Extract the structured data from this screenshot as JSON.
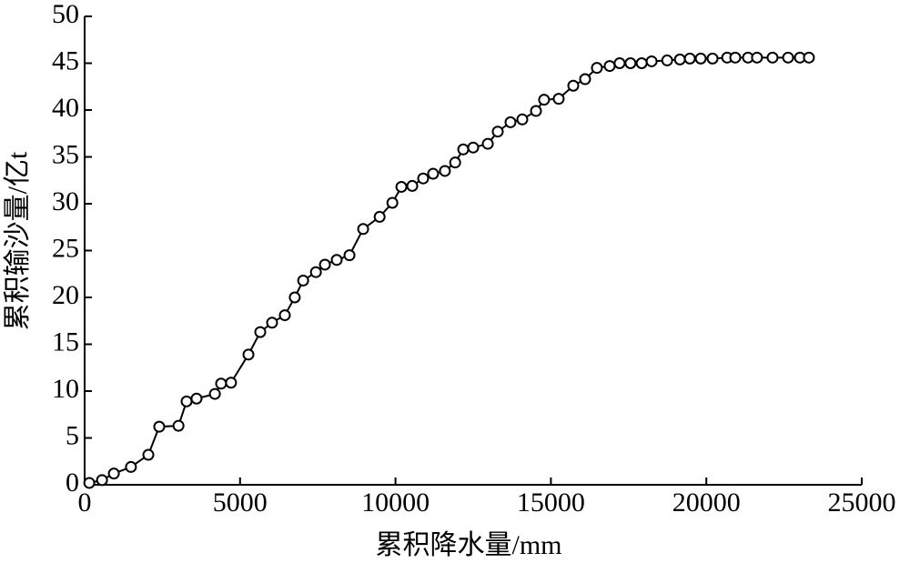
{
  "chart_data": {
    "type": "line",
    "xlabel": "累积降水量/mm",
    "ylabel": "累积输沙量/亿t",
    "xlim": [
      0,
      25000
    ],
    "xticks": [
      0,
      5000,
      10000,
      15000,
      20000,
      25000
    ],
    "ylim": [
      0,
      50
    ],
    "yticks": [
      0,
      5,
      10,
      15,
      20,
      25,
      30,
      35,
      40,
      45,
      50
    ],
    "color": "#000000",
    "marker": "circle",
    "x": [
      150,
      560,
      940,
      1490,
      2050,
      2400,
      3020,
      3280,
      3600,
      4190,
      4390,
      4710,
      5270,
      5650,
      6030,
      6440,
      6760,
      7030,
      7440,
      7730,
      8110,
      8520,
      8960,
      9490,
      9900,
      10190,
      10540,
      10890,
      11210,
      11590,
      11920,
      12180,
      12500,
      12970,
      13290,
      13700,
      14080,
      14520,
      14780,
      15250,
      15720,
      16100,
      16480,
      16890,
      17210,
      17560,
      17920,
      18240,
      18740,
      19150,
      19470,
      19820,
      20200,
      20670,
      20930,
      21340,
      21630,
      22130,
      22630,
      23010,
      23300
    ],
    "values": [
      0.2,
      0.5,
      1.2,
      1.9,
      3.2,
      6.2,
      6.3,
      8.9,
      9.2,
      9.7,
      10.8,
      10.9,
      13.9,
      16.3,
      17.3,
      18.1,
      20.0,
      21.8,
      22.7,
      23.5,
      24.0,
      24.5,
      27.3,
      28.6,
      30.1,
      31.8,
      31.9,
      32.7,
      33.2,
      33.5,
      34.4,
      35.8,
      36.0,
      36.4,
      37.7,
      38.7,
      39.0,
      39.9,
      41.1,
      41.2,
      42.6,
      43.3,
      44.5,
      44.7,
      45.0,
      45.0,
      45.0,
      45.2,
      45.3,
      45.4,
      45.5,
      45.5,
      45.5,
      45.6,
      45.6,
      45.6,
      45.6,
      45.6,
      45.6,
      45.6,
      45.6
    ]
  }
}
